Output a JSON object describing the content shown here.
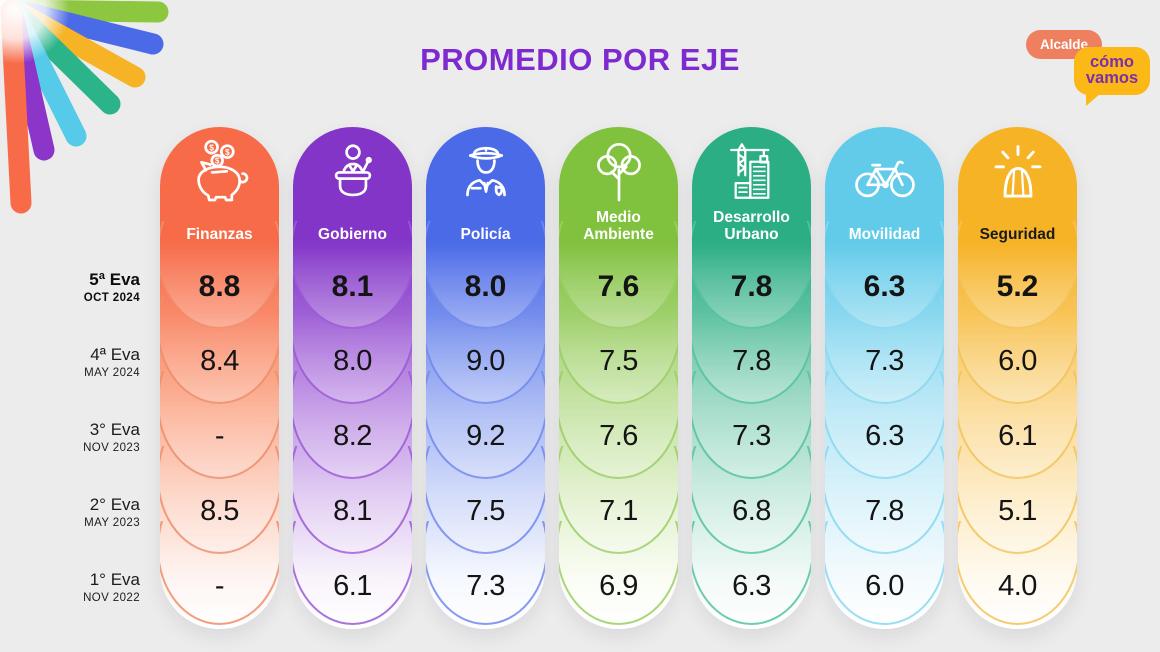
{
  "page": {
    "background": "#ECECEC"
  },
  "title": {
    "text": "PROMEDIO POR EJE",
    "color": "#7E2AD0"
  },
  "brand": {
    "left_logo": {
      "name": "rays-logo",
      "ray_colors": [
        "#8DC63F",
        "#4A6AE8",
        "#F6B325",
        "#2BB389",
        "#55CBE9",
        "#8B35C9",
        "#F76B48"
      ]
    },
    "right_logo": {
      "alcalde_label": "Alcalde",
      "alcalde_bg": "#EE8060",
      "alcalde_text_color": "#FFFFFF",
      "como_line1": "cómo",
      "como_line2": "vamos",
      "como_bg": "#FBB817",
      "como_text_color": "#7B2FA8"
    }
  },
  "rows": [
    {
      "label": "5ª Eva",
      "period": "OCT 2024",
      "emphasis": true
    },
    {
      "label": "4ª Eva",
      "period": "MAY 2024",
      "emphasis": false
    },
    {
      "label": "3° Eva",
      "period": "NOV 2023",
      "emphasis": false
    },
    {
      "label": "2° Eva",
      "period": "MAY 2023",
      "emphasis": false
    },
    {
      "label": "1° Eva",
      "period": "NOV 2022",
      "emphasis": false
    }
  ],
  "columns": [
    {
      "name": "Finanzas",
      "icon": "piggy-bank-icon",
      "color": "#F76B48",
      "mid": "#FBA98C",
      "faint": "#FEF4F0",
      "stroke": "#EF8E6C",
      "label_color": "#FFFFFF",
      "values": [
        "8.8",
        "8.4",
        "-",
        "8.5",
        "-"
      ]
    },
    {
      "name": "Gobierno",
      "icon": "podium-person-icon",
      "color": "#8335C8",
      "mid": "#BD8FE4",
      "faint": "#F8F3FC",
      "stroke": "#9C5BD6",
      "label_color": "#FFFFFF",
      "values": [
        "8.1",
        "8.0",
        "8.2",
        "8.1",
        "6.1"
      ]
    },
    {
      "name": "Policía",
      "icon": "police-officer-icon",
      "color": "#4A6AE8",
      "mid": "#9FB1F3",
      "faint": "#F4F7FE",
      "stroke": "#7389EE",
      "label_color": "#FFFFFF",
      "values": [
        "8.0",
        "9.0",
        "9.2",
        "7.5",
        "7.3"
      ]
    },
    {
      "name": "Medio Ambiente",
      "icon": "tree-icon",
      "color": "#80C13D",
      "mid": "#C0E09C",
      "faint": "#FAFDF3",
      "stroke": "#9CCE67",
      "label_color": "#FFFFFF",
      "values": [
        "7.6",
        "7.5",
        "7.6",
        "7.1",
        "6.9"
      ]
    },
    {
      "name": "Desarrollo Urbano",
      "icon": "crane-building-icon",
      "color": "#2BAE84",
      "mid": "#96D7C1",
      "faint": "#F1FAF7",
      "stroke": "#55C3A1",
      "label_color": "#FFFFFF",
      "values": [
        "7.8",
        "7.8",
        "7.3",
        "6.8",
        "6.3"
      ]
    },
    {
      "name": "Movilidad",
      "icon": "bicycle-icon",
      "color": "#62CBEA",
      "mid": "#B2E5F5",
      "faint": "#F3FBFE",
      "stroke": "#8AD8F0",
      "label_color": "#FFFFFF",
      "values": [
        "6.3",
        "7.3",
        "6.3",
        "7.8",
        "6.0"
      ]
    },
    {
      "name": "Seguridad",
      "icon": "siren-icon",
      "color": "#F6B325",
      "mid": "#FAD78D",
      "faint": "#FFFAEE",
      "stroke": "#F2C45C",
      "label_color": "#1A1A1A",
      "values": [
        "5.2",
        "6.0",
        "6.1",
        "5.1",
        "4.0"
      ]
    }
  ],
  "chart_data": {
    "type": "table",
    "title": "PROMEDIO POR EJE",
    "categories": [
      "Finanzas",
      "Gobierno",
      "Policía",
      "Medio Ambiente",
      "Desarrollo Urbano",
      "Movilidad",
      "Seguridad"
    ],
    "row_labels": [
      "5ª Eva (OCT 2024)",
      "4ª Eva (MAY 2024)",
      "3° Eva (NOV 2023)",
      "2° Eva (MAY 2023)",
      "1° Eva (NOV 2022)"
    ],
    "series": [
      {
        "name": "Finanzas",
        "values": [
          8.8,
          8.4,
          null,
          8.5,
          null
        ]
      },
      {
        "name": "Gobierno",
        "values": [
          8.1,
          8.0,
          8.2,
          8.1,
          6.1
        ]
      },
      {
        "name": "Policía",
        "values": [
          8.0,
          9.0,
          9.2,
          7.5,
          7.3
        ]
      },
      {
        "name": "Medio Ambiente",
        "values": [
          7.6,
          7.5,
          7.6,
          7.1,
          6.9
        ]
      },
      {
        "name": "Desarrollo Urbano",
        "values": [
          7.8,
          7.8,
          7.3,
          6.8,
          6.3
        ]
      },
      {
        "name": "Movilidad",
        "values": [
          6.3,
          7.3,
          6.3,
          7.8,
          6.0
        ]
      },
      {
        "name": "Seguridad",
        "values": [
          5.2,
          6.0,
          6.1,
          5.1,
          4.0
        ]
      }
    ],
    "value_range": [
      0,
      10
    ]
  }
}
